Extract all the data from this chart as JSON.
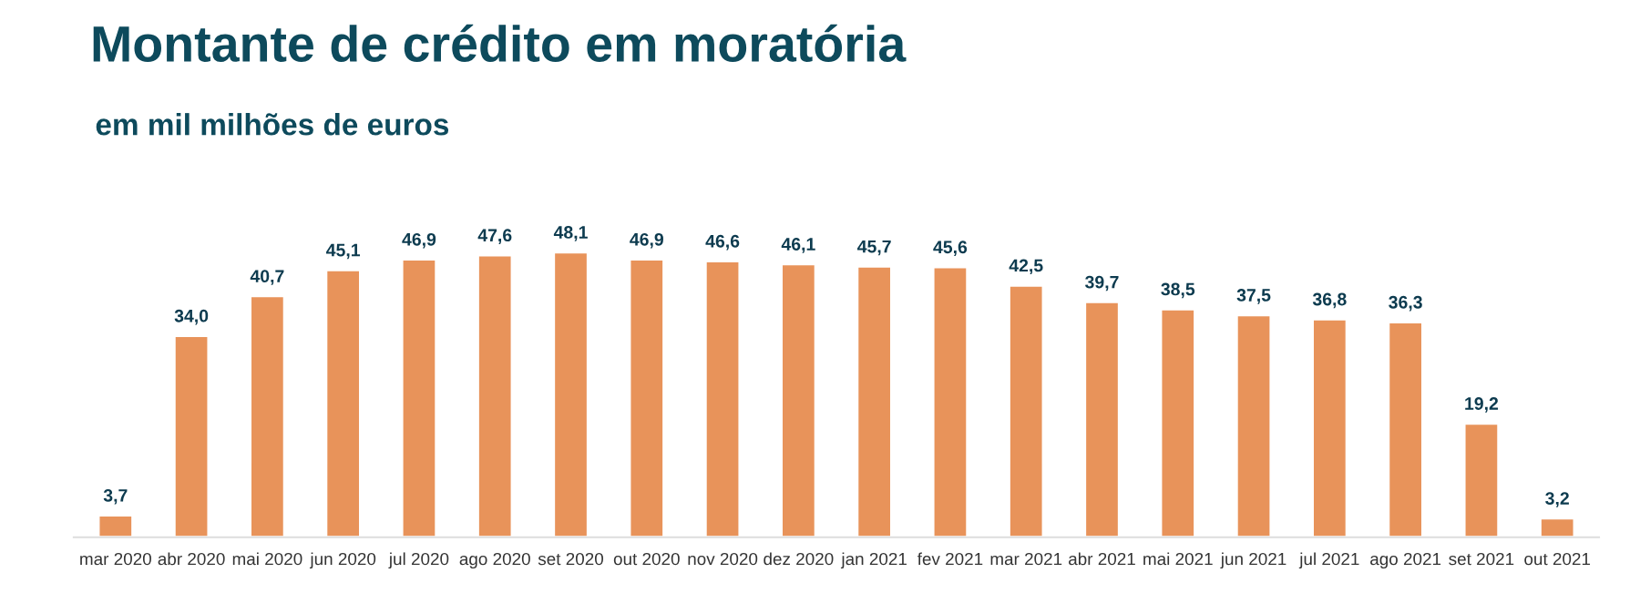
{
  "chart_data": {
    "type": "bar",
    "title": "Montante de crédito em moratória",
    "subtitle": "em mil milhões de euros",
    "categories": [
      "mar 2020",
      "abr 2020",
      "mai 2020",
      "jun 2020",
      "jul 2020",
      "ago 2020",
      "set 2020",
      "out 2020",
      "nov 2020",
      "dez 2020",
      "jan 2021",
      "fev 2021",
      "mar 2021",
      "abr 2021",
      "mai 2021",
      "jun 2021",
      "jul 2021",
      "ago 2021",
      "set 2021",
      "out 2021"
    ],
    "values": [
      3.7,
      34.0,
      40.7,
      45.1,
      46.9,
      47.6,
      48.1,
      46.9,
      46.6,
      46.1,
      45.7,
      45.6,
      42.5,
      39.7,
      38.5,
      37.5,
      36.8,
      36.3,
      19.2,
      3.2
    ],
    "value_labels": [
      "3,7",
      "34,0",
      "40,7",
      "45,1",
      "46,9",
      "47,6",
      "48,1",
      "46,9",
      "46,6",
      "46,1",
      "45,7",
      "45,6",
      "42,5",
      "39,7",
      "38,5",
      "37,5",
      "36,8",
      "36,3",
      "19,2",
      "3,2"
    ],
    "color": "#e8935a",
    "grid": false,
    "legend": false
  }
}
